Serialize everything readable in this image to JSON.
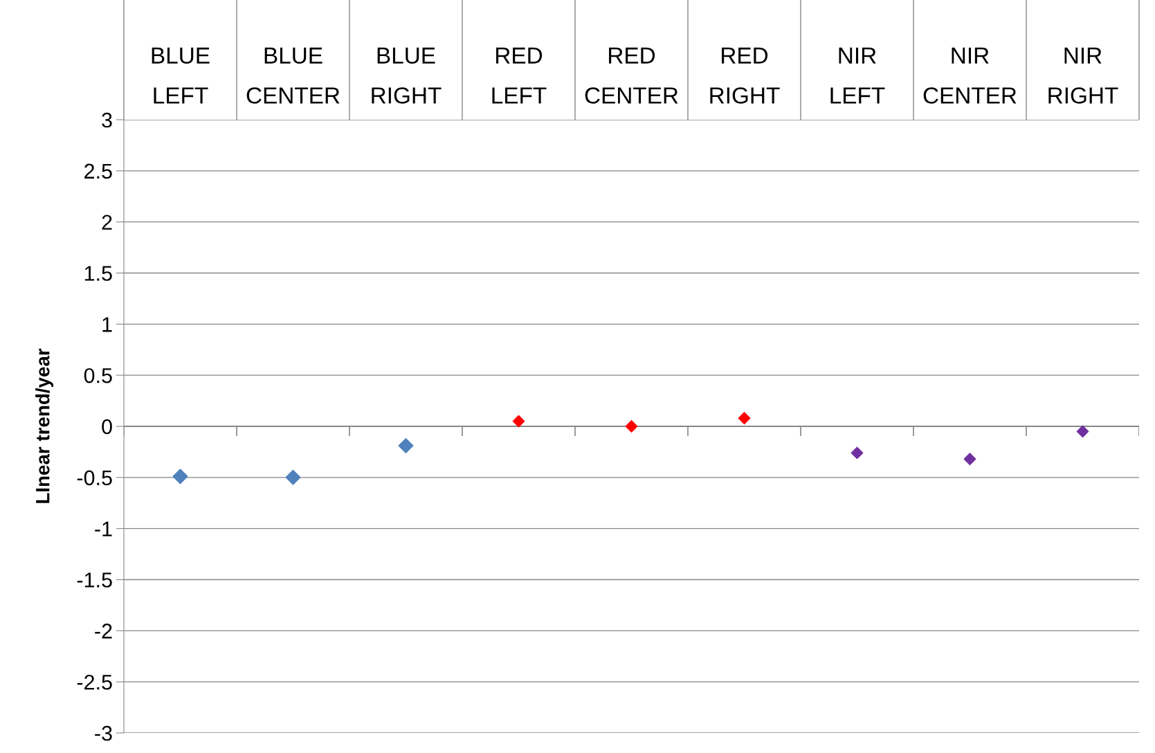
{
  "chart_data": {
    "type": "scatter",
    "ylabel": "LInear trend/year",
    "categories": [
      "BLUE\nLEFT",
      "BLUE\nCENTER",
      "BLUE\nRIGHT",
      "RED\nLEFT",
      "RED\nCENTER",
      "RED\nRIGHT",
      "NIR\nLEFT",
      "NIR\nCENTER",
      "NIR\nRIGHT"
    ],
    "series": [
      {
        "color": "#4f81bd",
        "values": [
          -0.49,
          -0.5,
          -0.19,
          null,
          null,
          null,
          null,
          null,
          null
        ]
      },
      {
        "color": "#ff0000",
        "values": [
          null,
          null,
          null,
          0.05,
          0.0,
          0.08,
          null,
          null,
          null
        ]
      },
      {
        "color": "#7030a0",
        "values": [
          null,
          null,
          null,
          null,
          null,
          null,
          -0.26,
          -0.32,
          -0.05
        ]
      }
    ],
    "ylim": [
      -3,
      3
    ],
    "yticks": [
      -3,
      -2.5,
      -2,
      -1.5,
      -1,
      -0.5,
      0,
      0.5,
      1,
      1.5,
      2,
      2.5,
      3
    ],
    "grid": "y",
    "marker": "diamond",
    "legend": false
  }
}
